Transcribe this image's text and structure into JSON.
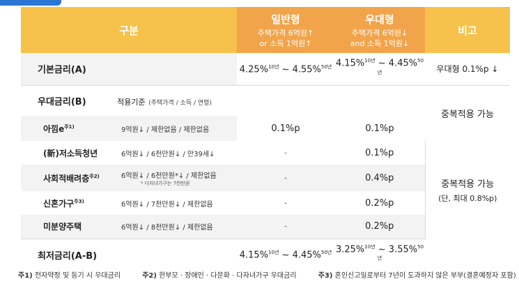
{
  "header": {
    "category": "구분",
    "general": {
      "title": "일반형",
      "sub1": "주택가격 6억원↑",
      "sub2": "or 소득 1억원↑"
    },
    "preferred": {
      "title": "우대형",
      "sub1": "주택가격 6억원↓",
      "sub2": "and 소득 1억원↓"
    },
    "remark": "비고"
  },
  "base_rate": {
    "label": "기본금리(A)",
    "general": "4.25%",
    "general_sup1": "10년",
    "general_mid": " ~ 4.55%",
    "general_sup2": "50년",
    "preferred": "4.15%",
    "preferred_sup1": "10년",
    "preferred_mid": " ~ 4.45%",
    "preferred_sup2": "50년",
    "remark": "우대형 0.1%p ↓"
  },
  "pref_rate": {
    "label": "우대금리(B)",
    "criteria_label": "적용기준",
    "criteria_note": "(주택가격 / 소득 / 연령)"
  },
  "rows": [
    {
      "name": "아낌e",
      "sup": "주1)",
      "criteria": "9억원↓ / 제한없음 / 제한없음",
      "note": "",
      "general": "0.1%p",
      "preferred": "0.1%p"
    },
    {
      "name": "(新)저소득청년",
      "sup": "",
      "criteria": "6억원↓ / 6천만원↓ / 만39세↓",
      "note": "",
      "general": "-",
      "preferred": "0.1%p"
    },
    {
      "name": "사회적배려층",
      "sup": "주2)",
      "criteria": "6억원↓ / 6천만원*↓ / 제한없음",
      "note": "* 다자녀가구는 7천만원",
      "general": "-",
      "preferred": "0.4%p"
    },
    {
      "name": "신혼가구",
      "sup": "주3)",
      "criteria": "6억원↓ / 7천만원↓ / 제한없음",
      "note": "",
      "general": "-",
      "preferred": "0.2%p"
    },
    {
      "name": "미분양주택",
      "sup": "",
      "criteria": "6억원↓ / 8천만원↓ / 제한없음",
      "note": "",
      "general": "-",
      "preferred": "0.2%p"
    }
  ],
  "remarks": {
    "dup1": "중복적용 가능",
    "dup2": "중복적용 가능",
    "dup2_sub": "(단, 최대 0.8%p)"
  },
  "min_rate": {
    "label": "최저금리(A-B)",
    "general": "4.15%",
    "general_sup1": "10년",
    "general_mid": " ~ 4.45%",
    "general_sup2": "50년",
    "preferred": "3.25%",
    "preferred_sup1": "10년",
    "preferred_mid": " ~ 3.55%",
    "preferred_sup2": "50년"
  },
  "footnotes": [
    {
      "key": "주1)",
      "text": " 전자약정 및 등기 시 우대금리"
    },
    {
      "key": "주2)",
      "text": " 한부모 · 장애인 · 다문화 · 다자녀가구 우대금리"
    },
    {
      "key": "주3)",
      "text": " 혼인신고일로부터 7년이 도과하지 않은 부부(결혼예정자 포함)"
    }
  ]
}
